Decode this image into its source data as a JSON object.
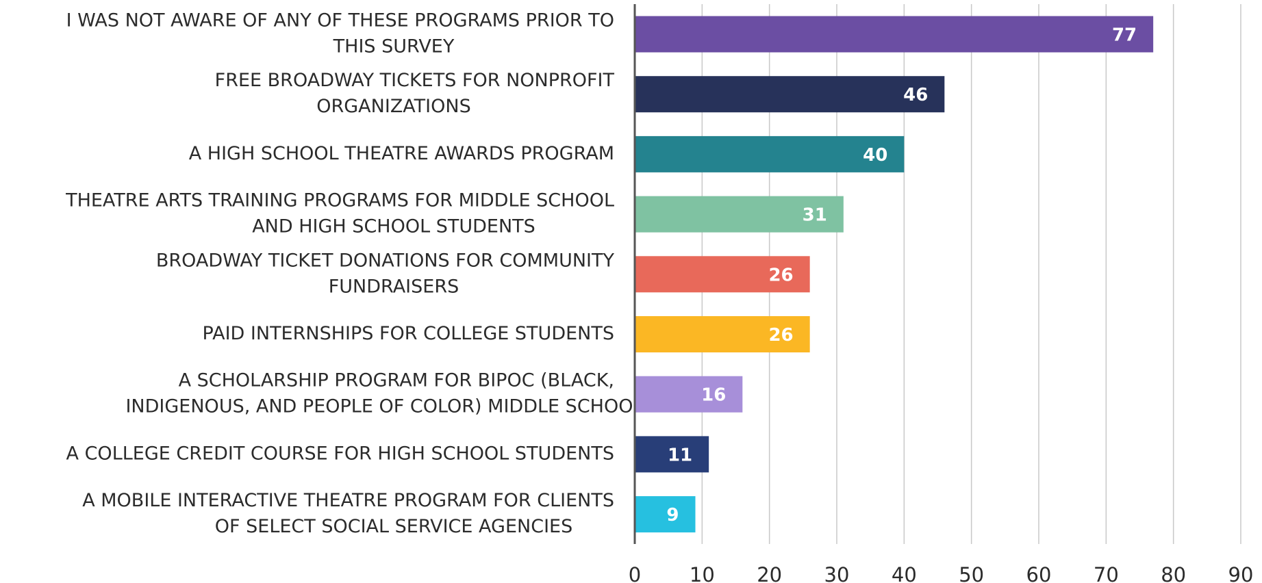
{
  "chart_data": {
    "type": "bar",
    "orientation": "horizontal",
    "categories": [
      [
        "I WAS NOT AWARE OF ANY OF THESE PROGRAMS PRIOR TO",
        "THIS SURVEY"
      ],
      [
        "FREE BROADWAY TICKETS FOR NONPROFIT",
        "ORGANIZATIONS"
      ],
      [
        "A HIGH SCHOOL THEATRE AWARDS PROGRAM"
      ],
      [
        "THEATRE ARTS TRAINING PROGRAMS FOR MIDDLE SCHOOL",
        "AND HIGH SCHOOL STUDENTS"
      ],
      [
        "BROADWAY TICKET DONATIONS FOR COMMUNITY",
        "FUNDRAISERS"
      ],
      [
        "PAID INTERNSHIPS FOR COLLEGE STUDENTS"
      ],
      [
        "A SCHOLARSHIP PROGRAM FOR BIPOC (BLACK,",
        "INDIGENOUS, AND PEOPLE OF COLOR) MIDDLE SCHOOL…"
      ],
      [
        "A COLLEGE CREDIT COURSE FOR HIGH SCHOOL STUDENTS"
      ],
      [
        "A MOBILE INTERACTIVE THEATRE PROGRAM FOR CLIENTS",
        "OF SELECT SOCIAL SERVICE AGENCIES"
      ]
    ],
    "values": [
      77,
      46,
      40,
      31,
      26,
      26,
      16,
      11,
      9
    ],
    "colors": [
      "#6b4ea3",
      "#27325a",
      "#24838f",
      "#7fc2a2",
      "#e8695a",
      "#fbb724",
      "#a78fd9",
      "#283e78",
      "#26c0e0"
    ],
    "xlim": [
      0,
      90
    ],
    "xticks": [
      0,
      10,
      20,
      30,
      40,
      50,
      60,
      70,
      80,
      90
    ],
    "grid": true
  }
}
